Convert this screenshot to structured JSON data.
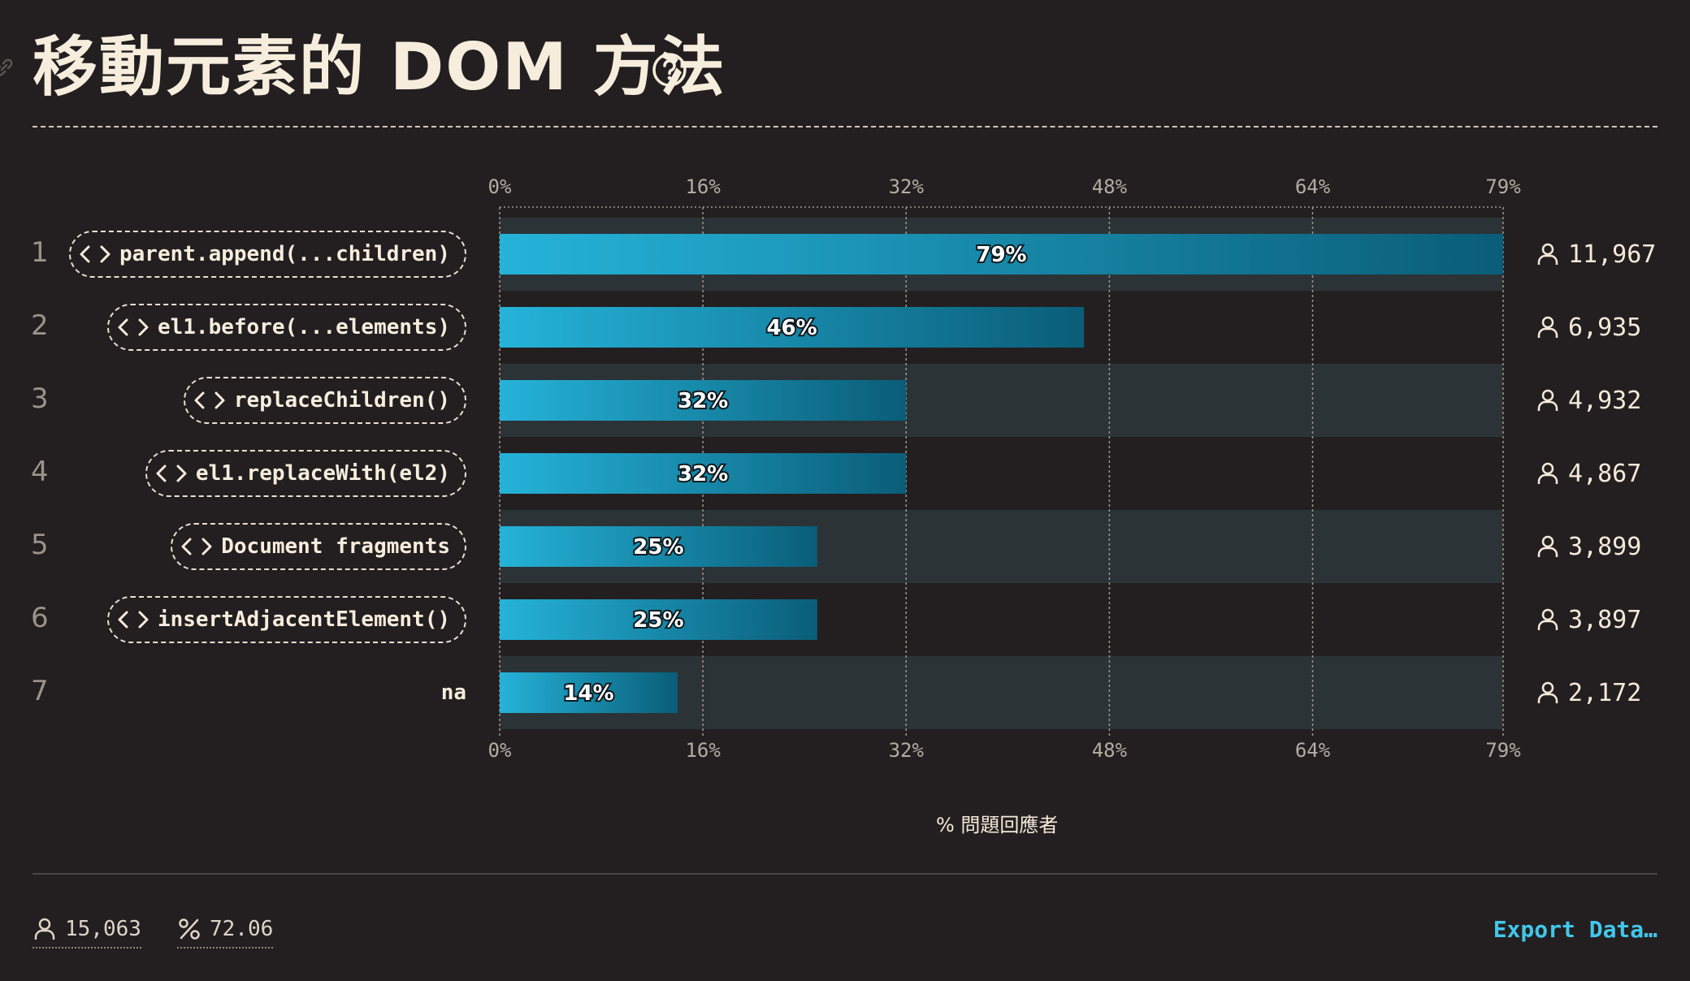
{
  "title": "移動元素的 DOM 方法",
  "icons": {
    "link": "link-icon",
    "help": "help-circle-icon",
    "code": "code-brackets-icon",
    "user": "user-icon",
    "percent": "percent-icon"
  },
  "colors": {
    "bar_start": "#25b3d9",
    "bar_end": "#0a5d78",
    "row_band": "#2c3337",
    "accent": "#41c7ea"
  },
  "chart_data": {
    "type": "bar",
    "orientation": "horizontal",
    "categories": [
      "parent.append(...children)",
      "el1.before(...elements)",
      "replaceChildren()",
      "el1.replaceWith(el2)",
      "Document fragments",
      "insertAdjacentElement()",
      "na"
    ],
    "ranks": [
      "1",
      "2",
      "3",
      "4",
      "5",
      "6",
      "7"
    ],
    "values": [
      79,
      46,
      32,
      32,
      25,
      25,
      14
    ],
    "value_labels": [
      "79%",
      "46%",
      "32%",
      "32%",
      "25%",
      "25%",
      "14%"
    ],
    "counts": [
      "11,967",
      "6,935",
      "4,932",
      "4,867",
      "3,899",
      "3,897",
      "2,172"
    ],
    "xlim": [
      0,
      79
    ],
    "x_ticks": [
      "0%",
      "16%",
      "32%",
      "48%",
      "64%",
      "79%"
    ],
    "x_tick_values": [
      0,
      16,
      32,
      48,
      64,
      79
    ],
    "xlabel": "% 問題回應者",
    "grid": true
  },
  "footer": {
    "respondents": "15,063",
    "percent": "72.06",
    "export_label": "Export Data…"
  }
}
